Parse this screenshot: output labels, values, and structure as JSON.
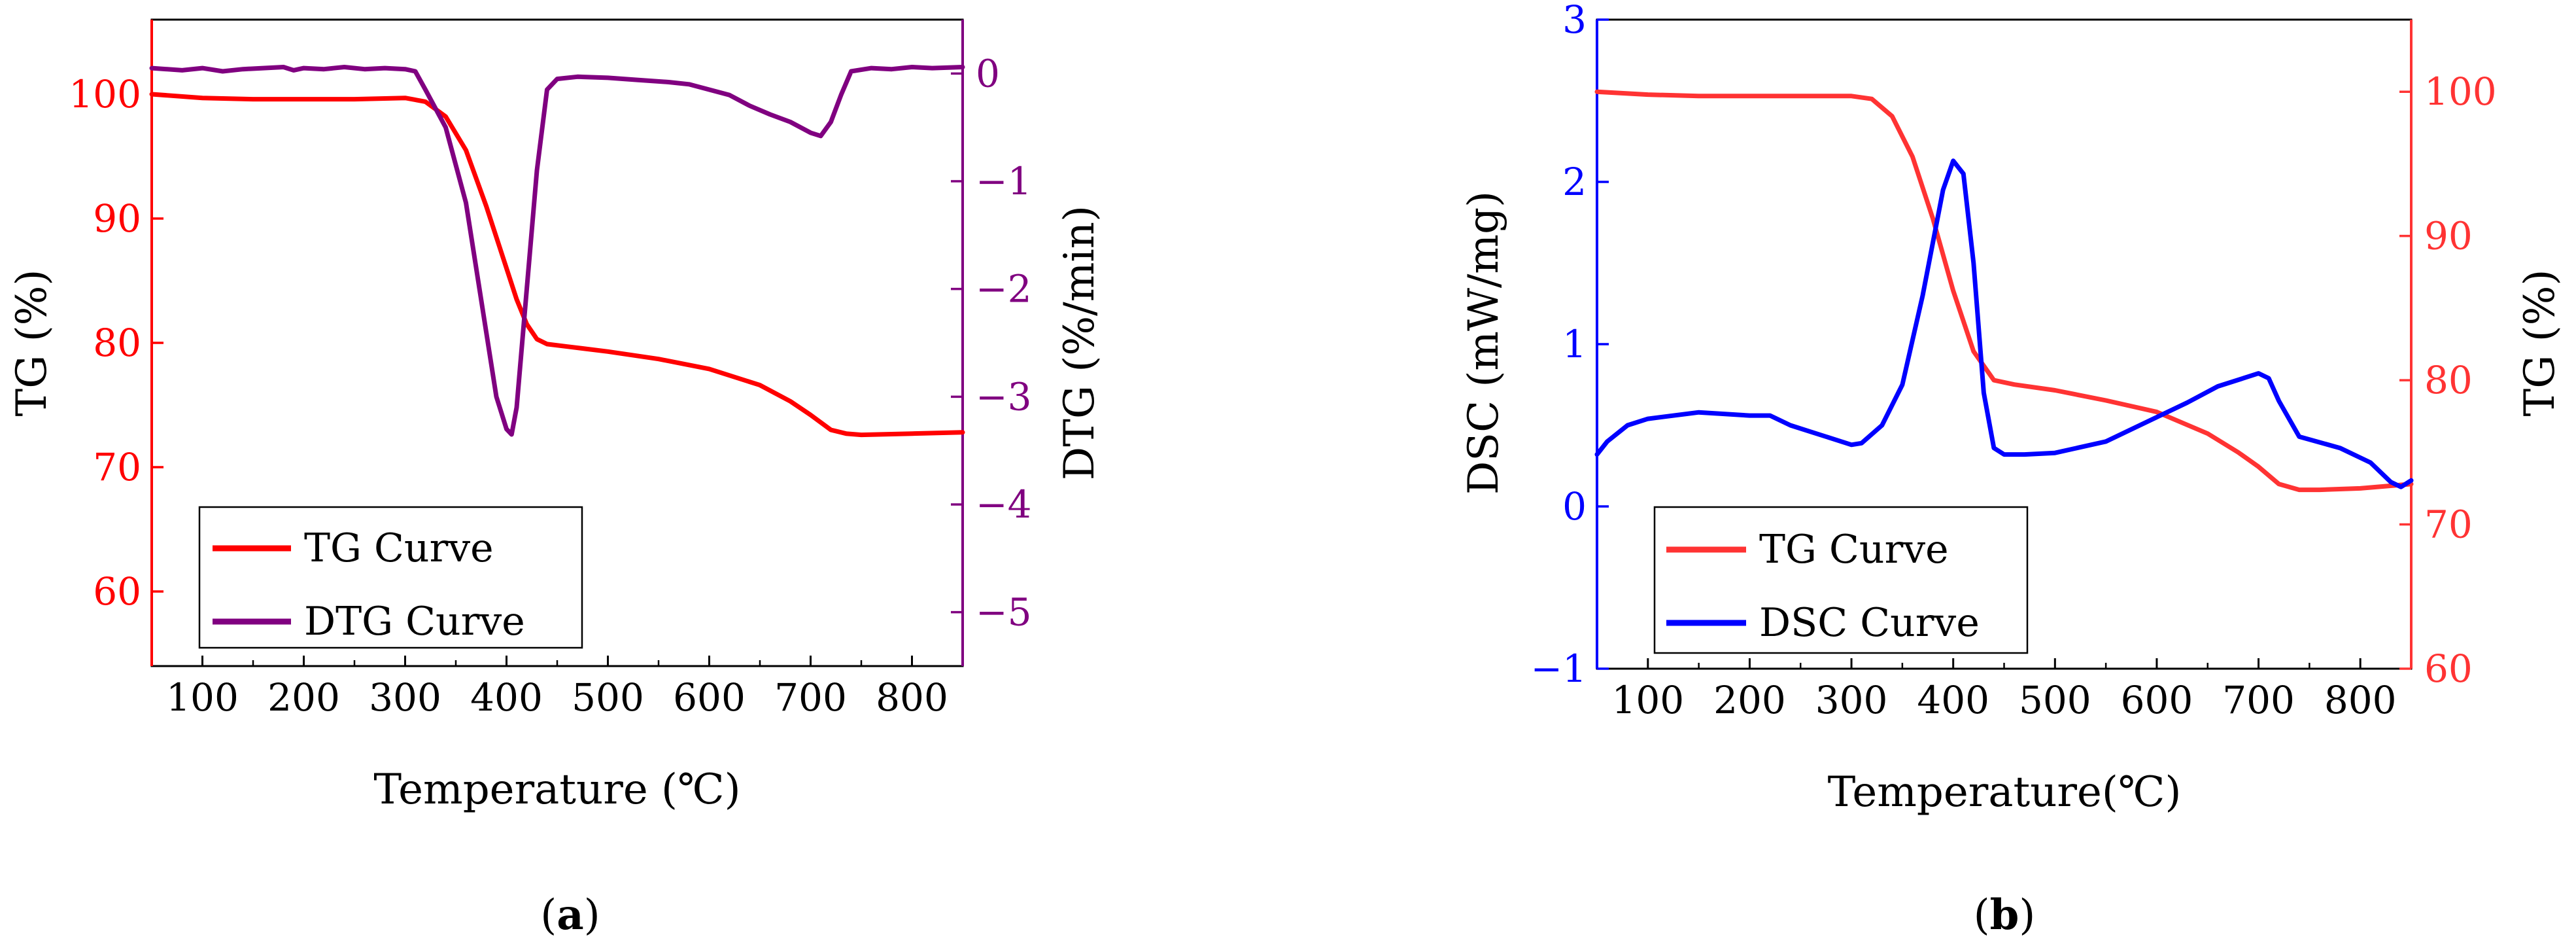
{
  "chart_data": [
    {
      "type": "line",
      "panel_label": "(a)",
      "panel_letter": "a",
      "xlabel": "Temperature (℃)",
      "xlim": [
        50,
        850
      ],
      "xticks": [
        100,
        200,
        300,
        400,
        500,
        600,
        700,
        800
      ],
      "left_axis": {
        "label": "TG (%)",
        "color": "#ff0000",
        "lim": [
          54,
          106
        ],
        "ticks": [
          60,
          70,
          80,
          90,
          100
        ]
      },
      "right_axis": {
        "label": "DTG (%/min)",
        "color": "#800080",
        "lim": [
          -5.5,
          0.5
        ],
        "ticks": [
          0,
          -1,
          -2,
          -3,
          -4,
          -5
        ]
      },
      "tick_label_text": {
        "x": [
          "100",
          "200",
          "300",
          "400",
          "500",
          "600",
          "700",
          "800"
        ],
        "left": [
          "60",
          "70",
          "80",
          "90",
          "100"
        ],
        "right": [
          "0",
          "−1",
          "−2",
          "−3",
          "−4",
          "−5"
        ]
      },
      "legend": {
        "position": "bottom-left",
        "entries": [
          "TG Curve",
          "DTG Curve"
        ]
      },
      "series": [
        {
          "name": "TG Curve",
          "axis": "left",
          "color": "#ff0000",
          "x": [
            50,
            100,
            150,
            200,
            250,
            300,
            320,
            340,
            360,
            380,
            400,
            410,
            420,
            430,
            440,
            460,
            500,
            550,
            600,
            650,
            680,
            700,
            720,
            735,
            750,
            800,
            850
          ],
          "y": [
            100,
            99.7,
            99.6,
            99.6,
            99.6,
            99.7,
            99.4,
            98.2,
            95.5,
            91,
            86,
            83.5,
            81.5,
            80.3,
            79.9,
            79.7,
            79.3,
            78.7,
            77.9,
            76.6,
            75.3,
            74.2,
            73,
            72.7,
            72.6,
            72.7,
            72.8
          ]
        },
        {
          "name": "DTG Curve",
          "axis": "right",
          "color": "#800080",
          "x": [
            50,
            80,
            100,
            120,
            140,
            160,
            180,
            190,
            200,
            220,
            240,
            260,
            280,
            300,
            310,
            320,
            340,
            360,
            380,
            390,
            400,
            405,
            410,
            420,
            430,
            440,
            450,
            470,
            500,
            530,
            560,
            580,
            600,
            620,
            640,
            660,
            680,
            700,
            710,
            720,
            730,
            740,
            760,
            780,
            800,
            820,
            850
          ],
          "y": [
            0.05,
            0.03,
            0.05,
            0.02,
            0.04,
            0.05,
            0.06,
            0.03,
            0.05,
            0.04,
            0.06,
            0.04,
            0.05,
            0.04,
            0.02,
            -0.15,
            -0.5,
            -1.2,
            -2.4,
            -3.0,
            -3.3,
            -3.35,
            -3.1,
            -2.0,
            -0.9,
            -0.15,
            -0.05,
            -0.03,
            -0.04,
            -0.06,
            -0.08,
            -0.1,
            -0.15,
            -0.2,
            -0.3,
            -0.38,
            -0.45,
            -0.55,
            -0.58,
            -0.45,
            -0.2,
            0.02,
            0.05,
            0.04,
            0.06,
            0.05,
            0.06
          ]
        }
      ]
    },
    {
      "type": "line",
      "panel_label": "(b)",
      "panel_letter": "b",
      "xlabel": "Temperature(℃)",
      "xlim": [
        50,
        850
      ],
      "xticks": [
        100,
        200,
        300,
        400,
        500,
        600,
        700,
        800
      ],
      "left_axis": {
        "label": "DSC (mW/mg)",
        "color": "#0000ff",
        "lim": [
          -1,
          3
        ],
        "ticks": [
          -1,
          0,
          1,
          2,
          3
        ]
      },
      "right_axis": {
        "label": "TG (%)",
        "color": "#ff3333",
        "lim": [
          60,
          105
        ],
        "ticks": [
          60,
          70,
          80,
          90,
          100
        ]
      },
      "tick_label_text": {
        "x": [
          "100",
          "200",
          "300",
          "400",
          "500",
          "600",
          "700",
          "800"
        ],
        "left": [
          "−1",
          "0",
          "1",
          "2",
          "3"
        ],
        "right": [
          "60",
          "70",
          "80",
          "90",
          "100"
        ]
      },
      "legend": {
        "position": "bottom-left",
        "entries": [
          "TG Curve",
          "DSC Curve"
        ]
      },
      "series": [
        {
          "name": "TG Curve",
          "axis": "right",
          "color": "#ff3333",
          "x": [
            50,
            100,
            150,
            200,
            250,
            300,
            320,
            340,
            360,
            380,
            400,
            420,
            440,
            460,
            500,
            550,
            600,
            650,
            680,
            700,
            720,
            740,
            760,
            800,
            850
          ],
          "y": [
            100,
            99.8,
            99.7,
            99.7,
            99.7,
            99.7,
            99.5,
            98.3,
            95.5,
            91.2,
            86.2,
            82,
            80,
            79.7,
            79.3,
            78.6,
            77.8,
            76.3,
            75,
            74,
            72.8,
            72.4,
            72.4,
            72.5,
            72.8
          ]
        },
        {
          "name": "DSC Curve",
          "axis": "left",
          "color": "#0000ff",
          "x": [
            50,
            60,
            80,
            100,
            150,
            200,
            220,
            240,
            260,
            280,
            300,
            310,
            330,
            350,
            370,
            390,
            400,
            410,
            420,
            430,
            440,
            450,
            470,
            500,
            550,
            600,
            630,
            660,
            690,
            700,
            710,
            720,
            740,
            780,
            810,
            830,
            840,
            850
          ],
          "y": [
            0.32,
            0.4,
            0.5,
            0.54,
            0.58,
            0.56,
            0.56,
            0.5,
            0.46,
            0.42,
            0.38,
            0.39,
            0.5,
            0.75,
            1.3,
            1.95,
            2.13,
            2.05,
            1.5,
            0.7,
            0.36,
            0.32,
            0.32,
            0.33,
            0.4,
            0.55,
            0.64,
            0.74,
            0.8,
            0.82,
            0.79,
            0.65,
            0.43,
            0.36,
            0.27,
            0.15,
            0.12,
            0.16
          ]
        }
      ]
    }
  ]
}
